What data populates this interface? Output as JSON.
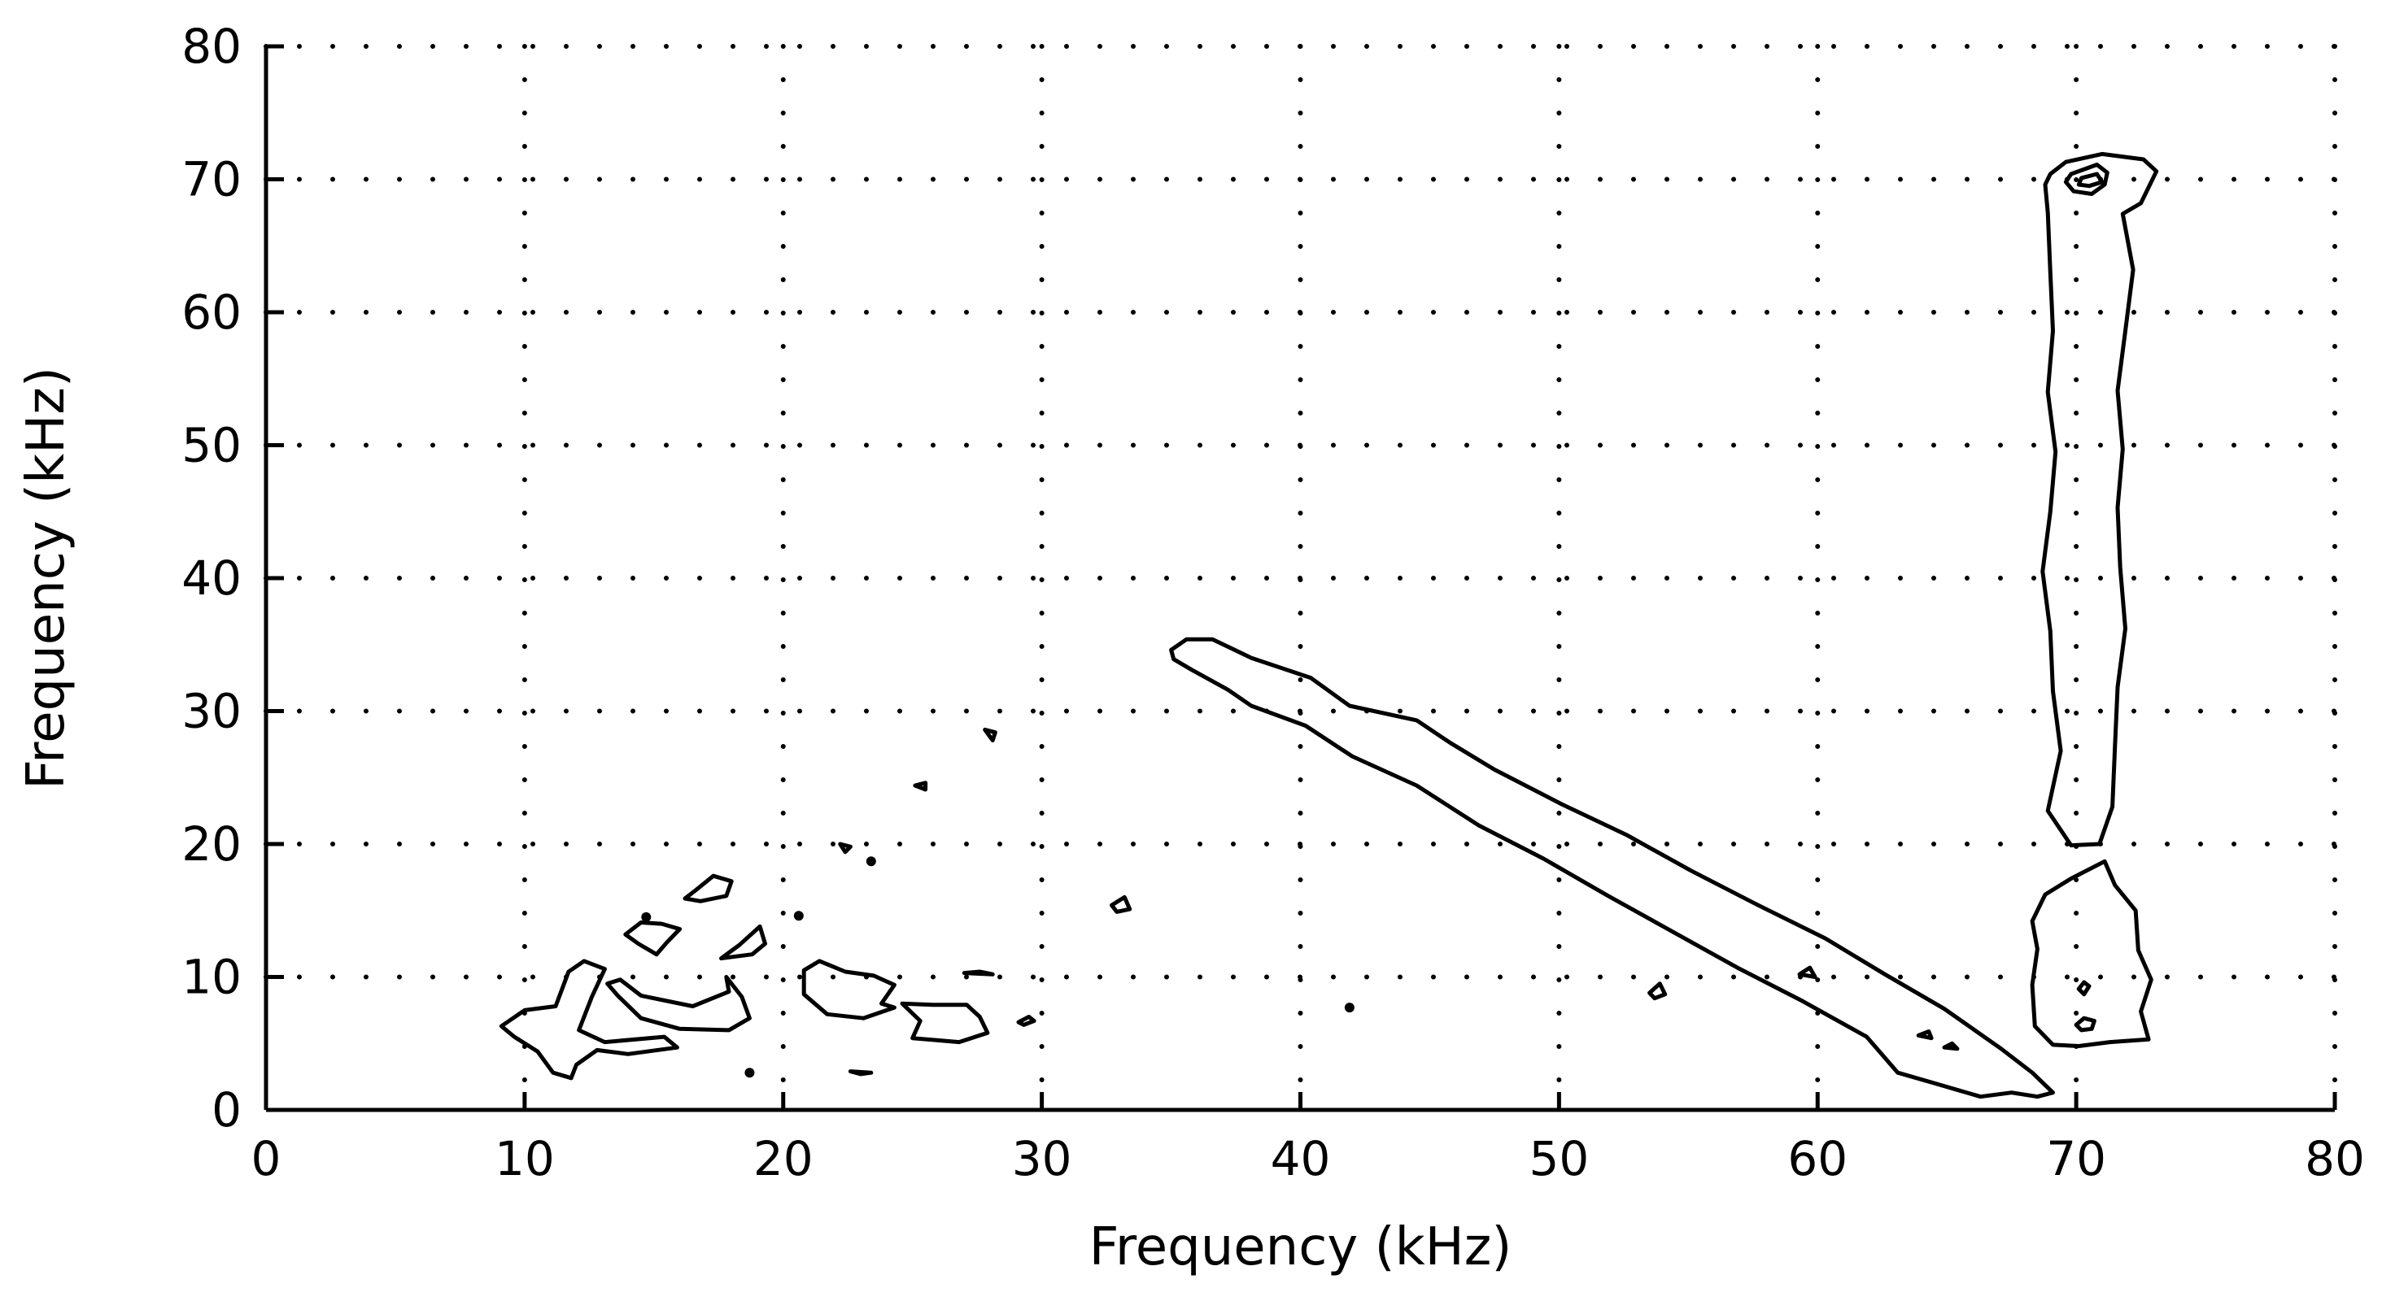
{
  "chart_data": {
    "type": "contour",
    "title": "",
    "xlabel": "Frequency (kHz)",
    "ylabel": "Frequency (kHz)",
    "xlim": [
      0,
      80
    ],
    "ylim": [
      0,
      80
    ],
    "x_ticks": [
      0,
      10,
      20,
      30,
      40,
      50,
      60,
      70,
      80
    ],
    "y_ticks": [
      0,
      10,
      20,
      30,
      40,
      50,
      60,
      70,
      80
    ],
    "grid": "dotted",
    "line_color": "#000000",
    "contours": [
      {
        "name": "",
        "points": [
          [
            35.0,
            34.6
          ],
          [
            35.6,
            35.4
          ],
          [
            36.6,
            35.4
          ],
          [
            38.1,
            34.0
          ],
          [
            40.4,
            32.5
          ],
          [
            41.9,
            30.4
          ],
          [
            44.5,
            29.3
          ],
          [
            45.8,
            27.6
          ],
          [
            47.5,
            25.6
          ],
          [
            50.1,
            23.0
          ],
          [
            52.6,
            20.7
          ],
          [
            55.1,
            18.0
          ],
          [
            57.7,
            15.4
          ],
          [
            60.3,
            12.9
          ],
          [
            62.6,
            10.2
          ],
          [
            64.9,
            7.6
          ],
          [
            67.1,
            4.6
          ],
          [
            68.3,
            2.8
          ],
          [
            69.1,
            1.3
          ],
          [
            68.5,
            1.0
          ],
          [
            67.5,
            1.3
          ],
          [
            66.3,
            1.0
          ],
          [
            64.7,
            1.9
          ],
          [
            63.1,
            2.8
          ],
          [
            61.9,
            5.5
          ],
          [
            59.4,
            8.2
          ],
          [
            56.9,
            10.7
          ],
          [
            54.4,
            13.4
          ],
          [
            51.9,
            16.1
          ],
          [
            49.4,
            18.9
          ],
          [
            46.9,
            21.4
          ],
          [
            44.5,
            24.4
          ],
          [
            42.0,
            26.6
          ],
          [
            40.2,
            28.9
          ],
          [
            38.1,
            30.4
          ],
          [
            37.2,
            31.6
          ],
          [
            35.8,
            33.1
          ],
          [
            35.1,
            33.9
          ]
        ]
      },
      {
        "name": "",
        "points": [
          [
            68.8,
            69.6
          ],
          [
            68.9,
            67.5
          ],
          [
            69.0,
            63.0
          ],
          [
            69.1,
            58.6
          ],
          [
            68.9,
            54.0
          ],
          [
            69.2,
            49.5
          ],
          [
            69.0,
            45.0
          ],
          [
            68.7,
            40.5
          ],
          [
            69.0,
            36.0
          ],
          [
            69.1,
            31.5
          ],
          [
            69.4,
            27.0
          ],
          [
            68.9,
            22.5
          ],
          [
            69.8,
            19.9
          ],
          [
            70.9,
            20.0
          ],
          [
            71.4,
            22.8
          ],
          [
            71.5,
            27.4
          ],
          [
            71.6,
            31.8
          ],
          [
            71.9,
            36.2
          ],
          [
            71.7,
            40.8
          ],
          [
            71.6,
            45.3
          ],
          [
            71.8,
            49.7
          ],
          [
            71.6,
            54.1
          ],
          [
            71.9,
            58.6
          ],
          [
            72.2,
            63.2
          ],
          [
            71.8,
            67.4
          ],
          [
            72.5,
            68.2
          ],
          [
            73.1,
            70.6
          ],
          [
            72.6,
            71.5
          ],
          [
            71.0,
            71.9
          ],
          [
            69.6,
            71.3
          ],
          [
            69.0,
            70.4
          ]
        ]
      },
      {
        "name": "",
        "points": [
          [
            69.8,
            70.4
          ],
          [
            70.8,
            71.1
          ],
          [
            71.2,
            70.5
          ],
          [
            71.1,
            69.6
          ],
          [
            70.6,
            68.9
          ],
          [
            69.9,
            69.1
          ],
          [
            69.6,
            69.8
          ]
        ]
      },
      {
        "name": "",
        "points": [
          [
            70.2,
            70.1
          ],
          [
            70.8,
            70.4
          ],
          [
            71.0,
            69.8
          ],
          [
            70.5,
            69.5
          ],
          [
            70.1,
            69.6
          ]
        ]
      },
      {
        "name": "",
        "points": [
          [
            69.8,
            17.4
          ],
          [
            71.1,
            18.7
          ],
          [
            71.5,
            16.9
          ],
          [
            72.3,
            15.0
          ],
          [
            72.4,
            12.0
          ],
          [
            72.9,
            9.8
          ],
          [
            72.5,
            7.4
          ],
          [
            72.8,
            5.3
          ],
          [
            71.3,
            5.1
          ],
          [
            70.1,
            4.8
          ],
          [
            69.1,
            4.9
          ],
          [
            68.4,
            6.3
          ],
          [
            68.3,
            9.4
          ],
          [
            68.5,
            12.1
          ],
          [
            68.3,
            14.2
          ],
          [
            68.8,
            16.2
          ]
        ]
      },
      {
        "name": "",
        "points": [
          [
            70.0,
            6.4
          ],
          [
            70.3,
            6.9
          ],
          [
            70.7,
            6.7
          ],
          [
            70.6,
            6.1
          ],
          [
            70.2,
            6.0
          ]
        ]
      },
      {
        "name": "",
        "points": [
          [
            70.1,
            9.1
          ],
          [
            70.3,
            9.6
          ],
          [
            70.5,
            9.3
          ],
          [
            70.3,
            8.7
          ]
        ]
      },
      {
        "name": "",
        "points": [
          [
            9.1,
            6.3
          ],
          [
            10.0,
            7.5
          ],
          [
            11.2,
            7.8
          ],
          [
            11.7,
            10.4
          ],
          [
            12.3,
            11.2
          ],
          [
            13.1,
            10.6
          ],
          [
            12.6,
            8.5
          ],
          [
            12.1,
            6.0
          ],
          [
            13.1,
            5.1
          ],
          [
            15.4,
            5.5
          ],
          [
            15.9,
            4.7
          ],
          [
            14.0,
            4.2
          ],
          [
            12.8,
            4.5
          ],
          [
            12.0,
            3.4
          ],
          [
            11.8,
            2.4
          ],
          [
            11.1,
            2.8
          ],
          [
            10.5,
            4.4
          ],
          [
            9.6,
            5.5
          ]
        ]
      },
      {
        "name": "",
        "points": [
          [
            13.7,
            9.8
          ],
          [
            14.5,
            8.6
          ],
          [
            16.5,
            7.8
          ],
          [
            17.9,
            8.9
          ],
          [
            17.8,
            10.0
          ],
          [
            18.4,
            8.5
          ],
          [
            18.7,
            6.9
          ],
          [
            17.9,
            6.0
          ],
          [
            16.0,
            6.1
          ],
          [
            14.5,
            6.9
          ],
          [
            13.6,
            8.6
          ],
          [
            13.2,
            9.5
          ]
        ]
      },
      {
        "name": "",
        "points": [
          [
            13.9,
            13.2
          ],
          [
            14.4,
            12.5
          ],
          [
            15.1,
            11.7
          ],
          [
            15.5,
            12.6
          ],
          [
            16.0,
            13.6
          ],
          [
            15.3,
            14.0
          ],
          [
            14.5,
            14.1
          ]
        ]
      },
      {
        "name": "",
        "points": [
          [
            16.6,
            16.5
          ],
          [
            17.3,
            17.6
          ],
          [
            18.0,
            17.2
          ],
          [
            17.8,
            16.1
          ],
          [
            16.8,
            15.7
          ],
          [
            16.2,
            15.9
          ]
        ]
      },
      {
        "name": "",
        "points": [
          [
            17.6,
            11.4
          ],
          [
            18.3,
            12.4
          ],
          [
            19.1,
            13.8
          ],
          [
            19.3,
            12.5
          ],
          [
            18.8,
            11.7
          ]
        ]
      },
      {
        "name": "",
        "points": [
          [
            20.8,
            10.5
          ],
          [
            21.4,
            11.2
          ],
          [
            22.4,
            10.4
          ],
          [
            23.5,
            10.1
          ],
          [
            24.3,
            9.4
          ],
          [
            23.8,
            8.0
          ],
          [
            24.3,
            7.7
          ],
          [
            23.1,
            6.9
          ],
          [
            21.7,
            7.2
          ],
          [
            20.8,
            8.7
          ]
        ]
      },
      {
        "name": "",
        "points": [
          [
            24.6,
            8.0
          ],
          [
            25.3,
            6.7
          ],
          [
            25.0,
            5.4
          ],
          [
            26.8,
            5.1
          ],
          [
            27.9,
            5.8
          ],
          [
            27.6,
            7.0
          ],
          [
            27.1,
            7.9
          ],
          [
            25.8,
            7.9
          ]
        ]
      },
      {
        "name": "",
        "points": [
          [
            22.2,
            20.0
          ],
          [
            22.4,
            19.4
          ],
          [
            22.6,
            19.8
          ]
        ]
      },
      {
        "name": "",
        "points": [
          [
            25.1,
            24.4
          ],
          [
            25.5,
            24.6
          ],
          [
            25.5,
            24.1
          ]
        ]
      },
      {
        "name": "",
        "points": [
          [
            27.8,
            28.6
          ],
          [
            28.1,
            27.8
          ],
          [
            28.2,
            28.4
          ]
        ]
      },
      {
        "name": "",
        "points": [
          [
            32.7,
            15.4
          ],
          [
            33.2,
            16.0
          ],
          [
            33.4,
            15.1
          ],
          [
            32.9,
            14.9
          ]
        ]
      },
      {
        "name": "",
        "points": [
          [
            29.1,
            6.6
          ],
          [
            29.5,
            7.0
          ],
          [
            29.7,
            6.7
          ],
          [
            29.3,
            6.4
          ]
        ]
      },
      {
        "name": "",
        "points": [
          [
            53.5,
            8.8
          ],
          [
            53.9,
            9.5
          ],
          [
            54.1,
            8.7
          ],
          [
            53.7,
            8.4
          ]
        ]
      },
      {
        "name": "",
        "points": [
          [
            59.3,
            10.2
          ],
          [
            59.7,
            10.7
          ],
          [
            59.9,
            10.0
          ]
        ]
      },
      {
        "name": "",
        "points": [
          [
            63.9,
            5.6
          ],
          [
            64.3,
            5.9
          ],
          [
            64.4,
            5.4
          ]
        ]
      },
      {
        "name": "",
        "points": [
          [
            64.9,
            4.7
          ],
          [
            65.2,
            5.0
          ],
          [
            65.4,
            4.6
          ]
        ]
      },
      {
        "name": "",
        "points": [
          [
            27.0,
            10.3
          ],
          [
            27.6,
            10.4
          ],
          [
            28.1,
            10.2
          ]
        ]
      },
      {
        "name": "",
        "points": [
          [
            22.6,
            2.9
          ],
          [
            23.4,
            2.8
          ],
          [
            23.0,
            2.7
          ]
        ]
      }
    ],
    "points": [
      {
        "name": "",
        "x": 41.9,
        "y": 7.7
      },
      {
        "name": "",
        "x": 18.7,
        "y": 2.8
      },
      {
        "name": "",
        "x": 14.7,
        "y": 14.5
      },
      {
        "name": "",
        "x": 20.6,
        "y": 14.6
      },
      {
        "name": "",
        "x": 23.4,
        "y": 18.7
      }
    ]
  }
}
